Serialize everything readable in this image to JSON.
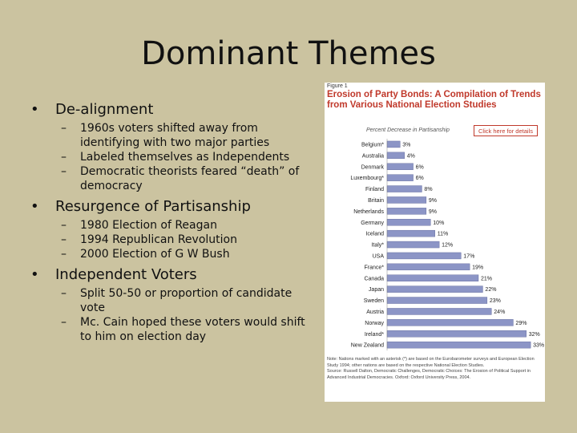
{
  "slide": {
    "title": "Dominant Themes",
    "sections": [
      {
        "heading": "De-alignment",
        "items": [
          "1960s voters shifted away from identifying with two major parties",
          "Labeled themselves as Independents",
          "Democratic theorists feared “death” of democracy"
        ]
      },
      {
        "heading": "Resurgence of Partisanship",
        "items": [
          "1980 Election of Reagan",
          "1994 Republican Revolution",
          "2000 Election of G W Bush"
        ]
      },
      {
        "heading": "Independent Voters",
        "items": [
          "Split 50-50 or proportion of candidate vote",
          "Mc. Cain hoped these voters would shift to him on election day"
        ]
      }
    ]
  },
  "figure": {
    "label": "Figure 1",
    "title": "Erosion of Party Bonds: A Compilation of Trends from Various National Election Studies",
    "axis_label": "Percent Decrease in Partisanship",
    "details_button": "Click here for details",
    "note": "Note: Nations marked with an asterisk (*) are based on the Eurobarometer surveys and European Election Study 1994; other nations are based on the respective National Election Studies.",
    "source": "Source: Russell Dalton, Democratic Challenges, Democratic Choices: The Erosion of Political Support in Advanced Industrial Democracies. Oxford: Oxford University Press, 2004."
  },
  "chart_data": {
    "type": "bar",
    "orientation": "horizontal",
    "categories": [
      "Belgium*",
      "Australia",
      "Denmark",
      "Luxembourg*",
      "Finland",
      "Britain",
      "Netherlands",
      "Germany",
      "Iceland",
      "Italy*",
      "USA",
      "France*",
      "Canada",
      "Japan",
      "Sweden",
      "Austria",
      "Norway",
      "Ireland*",
      "New Zealand"
    ],
    "values": [
      3,
      4,
      6,
      6,
      8,
      9,
      9,
      10,
      11,
      12,
      17,
      19,
      21,
      22,
      23,
      24,
      29,
      32,
      33
    ],
    "value_labels": [
      "3%",
      "4%",
      "6%",
      "6%",
      "8%",
      "9%",
      "9%",
      "10%",
      "11%",
      "12%",
      "17%",
      "19%",
      "21%",
      "22%",
      "23%",
      "24%",
      "29%",
      "32%",
      "33%"
    ],
    "color": "#8c95c6",
    "xlim": [
      0,
      35
    ]
  }
}
